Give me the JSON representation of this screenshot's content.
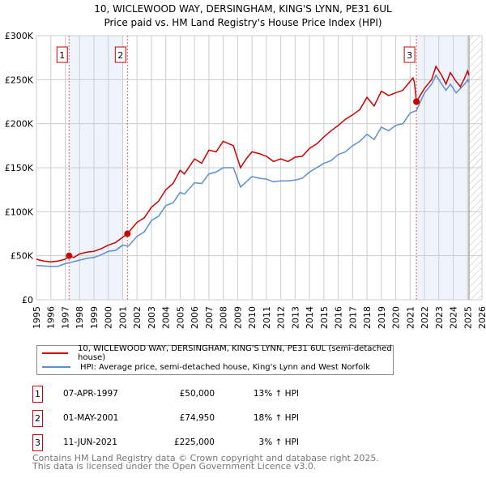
{
  "chart_data": {
    "type": "line",
    "title": "10, WICLEWOOD WAY, DERSINGHAM, KING'S LYNN, PE31 6UL",
    "subtitle": "Price paid vs. HM Land Registry's House Price Index (HPI)",
    "xlim": [
      1995,
      2026
    ],
    "ylim": [
      0,
      300000
    ],
    "x_ticks": [
      "1995",
      "1996",
      "1997",
      "1998",
      "1999",
      "2000",
      "2001",
      "2002",
      "2003",
      "2004",
      "2005",
      "2006",
      "2007",
      "2008",
      "2009",
      "2010",
      "2011",
      "2012",
      "2013",
      "2014",
      "2015",
      "2016",
      "2017",
      "2018",
      "2019",
      "2020",
      "2021",
      "2022",
      "2023",
      "2024",
      "2025",
      "2026"
    ],
    "y_ticks": [
      {
        "v": 0,
        "label": "£0"
      },
      {
        "v": 50000,
        "label": "£50K"
      },
      {
        "v": 100000,
        "label": "£100K"
      },
      {
        "v": 150000,
        "label": "£150K"
      },
      {
        "v": 200000,
        "label": "£200K"
      },
      {
        "v": 250000,
        "label": "£250K"
      },
      {
        "v": 300000,
        "label": "£300K"
      }
    ],
    "grid": true,
    "shaded_periods": [
      [
        1997.27,
        2001.0
      ],
      [
        2021.44,
        2025.1
      ]
    ],
    "forecast_hatch_from": 2025.1,
    "series": [
      {
        "name": "10, WICLEWOOD WAY, DERSINGHAM, KING'S LYNN, PE31 6UL (semi-detached house)",
        "color": "#cc0000",
        "x": [
          1995,
          1995.5,
          1996,
          1996.5,
          1997,
          1997.27,
          1997.6,
          1998,
          1998.5,
          1999,
          1999.5,
          2000,
          2000.5,
          2001,
          2001.33,
          2002,
          2002.5,
          2003,
          2003.5,
          2004,
          2004.5,
          2005,
          2005.3,
          2006,
          2006.5,
          2007,
          2007.5,
          2008,
          2008.7,
          2009.2,
          2009.6,
          2010,
          2010.5,
          2011,
          2011.5,
          2012,
          2012.5,
          2013,
          2013.5,
          2014,
          2014.5,
          2015,
          2015.5,
          2016,
          2016.5,
          2017,
          2017.5,
          2018,
          2018.5,
          2019,
          2019.5,
          2020,
          2020.5,
          2021,
          2021.2,
          2021.3,
          2021.44,
          2022,
          2022.5,
          2022.8,
          2023.2,
          2023.5,
          2023.8,
          2024.2,
          2024.5,
          2024.8,
          2025,
          2025.1
        ],
        "y": [
          46000,
          44000,
          43000,
          44000,
          46000,
          50000,
          48000,
          52000,
          54000,
          55000,
          58000,
          62000,
          65000,
          71000,
          75000,
          88000,
          93000,
          105000,
          112000,
          125000,
          132000,
          147000,
          143000,
          160000,
          155000,
          170000,
          168000,
          180000,
          175000,
          150000,
          160000,
          168000,
          166000,
          163000,
          157000,
          160000,
          157000,
          162000,
          163000,
          172000,
          177000,
          185000,
          192000,
          198000,
          205000,
          210000,
          216000,
          230000,
          220000,
          237000,
          232000,
          235000,
          238000,
          248000,
          252000,
          247000,
          225000,
          240000,
          250000,
          265000,
          255000,
          245000,
          258000,
          248000,
          242000,
          252000,
          260000,
          255000
        ]
      },
      {
        "name": "HPI: Average price, semi-detached house, King's Lynn and West Norfolk",
        "color": "#5b8fd0",
        "x": [
          1995,
          1995.5,
          1996,
          1996.5,
          1997,
          1997.5,
          1998,
          1998.5,
          1999,
          1999.5,
          2000,
          2000.5,
          2001,
          2001.4,
          2002,
          2002.5,
          2003,
          2003.5,
          2004,
          2004.5,
          2005,
          2005.3,
          2006,
          2006.5,
          2007,
          2007.5,
          2008,
          2008.7,
          2009.2,
          2009.6,
          2010,
          2010.5,
          2011,
          2011.5,
          2012,
          2012.5,
          2013,
          2013.5,
          2014,
          2014.5,
          2015,
          2015.5,
          2016,
          2016.5,
          2017,
          2017.5,
          2018,
          2018.5,
          2019,
          2019.5,
          2020,
          2020.5,
          2021,
          2021.44,
          2022,
          2022.5,
          2022.8,
          2023.2,
          2023.5,
          2023.8,
          2024.2,
          2024.5,
          2024.8,
          2025,
          2025.1
        ],
        "y": [
          39000,
          38500,
          38000,
          38000,
          41000,
          43000,
          45000,
          47000,
          48000,
          51000,
          55000,
          56000,
          62000,
          61000,
          72000,
          77000,
          90000,
          95000,
          107000,
          110000,
          122000,
          120000,
          133000,
          132000,
          143000,
          145000,
          150000,
          150000,
          128000,
          134000,
          140000,
          138000,
          137000,
          134000,
          135000,
          135000,
          136000,
          138000,
          145000,
          150000,
          155000,
          158000,
          165000,
          168000,
          175000,
          180000,
          188000,
          182000,
          196000,
          192000,
          198000,
          200000,
          212000,
          215000,
          235000,
          245000,
          255000,
          245000,
          238000,
          245000,
          235000,
          240000,
          245000,
          250000,
          247000
        ]
      }
    ],
    "sales": [
      {
        "id": "1",
        "x": 1997.27,
        "price": 50000,
        "date": "07-APR-1997",
        "price_label": "£50,000",
        "hpi": "13% ↑ HPI"
      },
      {
        "id": "2",
        "x": 2001.33,
        "price": 74950,
        "date": "01-MAY-2001",
        "price_label": "£74,950",
        "hpi": "18% ↑ HPI"
      },
      {
        "id": "3",
        "x": 2021.44,
        "price": 225000,
        "date": "11-JUN-2021",
        "price_label": "£225,000",
        "hpi": "3% ↑ HPI"
      }
    ]
  },
  "footer": {
    "line1": "Contains HM Land Registry data © Crown copyright and database right 2025.",
    "line2": "This data is licensed under the Open Government Licence v3.0."
  }
}
